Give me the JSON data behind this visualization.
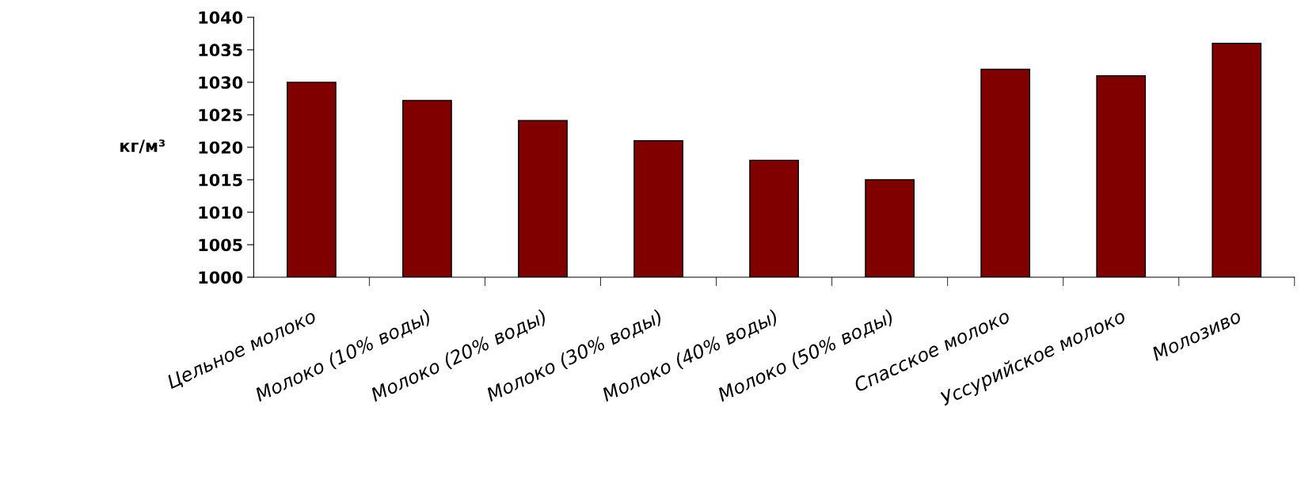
{
  "chart_data": {
    "type": "bar",
    "ylabel": "кг/м³",
    "categories": [
      "Цельное молоко",
      "Молоко (10% воды)",
      "Молоко (20% воды)",
      "Молоко (30% воды)",
      "Молоко (40% воды)",
      "Молоко (50% воды)",
      "Спасское молоко",
      "Уссурийское молоко",
      "Молозиво"
    ],
    "values": [
      1030,
      1027.2,
      1024.1,
      1021,
      1018,
      1015,
      1032,
      1031,
      1036
    ],
    "color": "#800000",
    "ylim": [
      1000,
      1040
    ],
    "yticks": [
      1000,
      1005,
      1010,
      1015,
      1020,
      1025,
      1030,
      1035,
      1040
    ],
    "grid": false,
    "legend": false
  }
}
